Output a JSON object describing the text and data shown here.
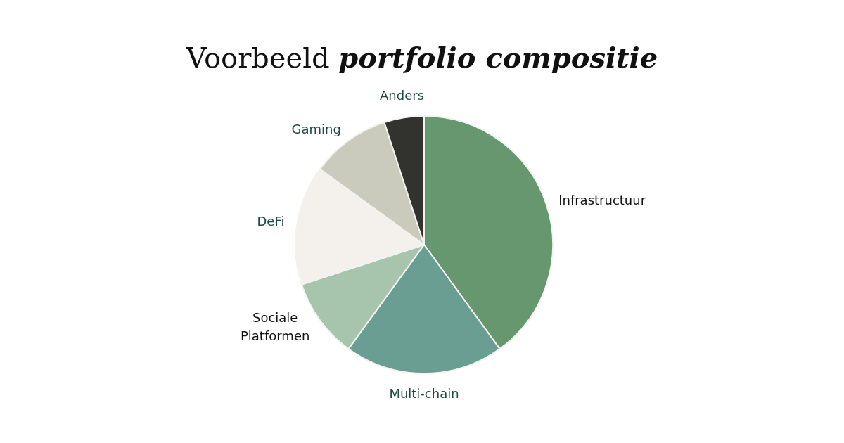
{
  "chart_data": {
    "type": "pie",
    "title": "Voorbeeld portfolio compositie",
    "categories": [
      "Infrastructuur",
      "Multi-chain",
      "Sociale Platformen",
      "DeFi",
      "Gaming",
      "Anders"
    ],
    "values": [
      40,
      20,
      10,
      15,
      10,
      5
    ],
    "colors": [
      "#66976f",
      "#6b9e93",
      "#a7c5ac",
      "#f4f1ec",
      "#cacbbd",
      "#32332e"
    ]
  }
}
